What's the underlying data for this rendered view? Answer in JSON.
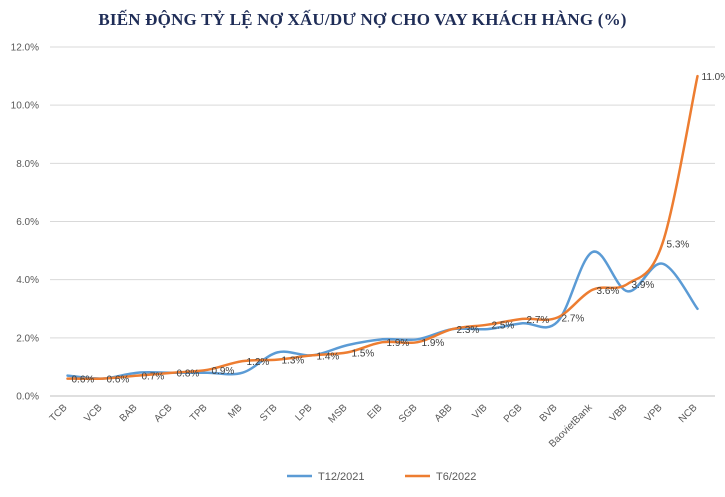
{
  "chart_data": {
    "type": "line",
    "title": "BIẾN ĐỘNG TỶ LỆ NỢ XẤU/DƯ NỢ CHO VAY KHÁCH HÀNG (%)",
    "xlabel": "",
    "ylabel": "",
    "categories": [
      "TCB",
      "VCB",
      "BAB",
      "ACB",
      "TPB",
      "MB",
      "STB",
      "LPB",
      "MSB",
      "EIB",
      "SGB",
      "ABB",
      "VIB",
      "PGB",
      "BVB",
      "BaovietBank",
      "VBB",
      "VPB",
      "NCB"
    ],
    "ylim": [
      0,
      12
    ],
    "yticks": [
      "0.0%",
      "2.0%",
      "4.0%",
      "6.0%",
      "8.0%",
      "10.0%",
      "12.0%"
    ],
    "grid": true,
    "legend_position": "bottom",
    "series": [
      {
        "name": "T12/2021",
        "color": "#5b9bd5",
        "values": [
          0.7,
          0.6,
          0.8,
          0.8,
          0.8,
          0.8,
          1.5,
          1.4,
          1.75,
          1.95,
          1.95,
          2.3,
          2.3,
          2.5,
          2.55,
          4.95,
          3.6,
          4.55,
          3.0
        ]
      },
      {
        "name": "T6/2022",
        "color": "#ed7d31",
        "values": [
          0.6,
          0.6,
          0.7,
          0.8,
          0.9,
          1.2,
          1.25,
          1.4,
          1.5,
          1.85,
          1.85,
          2.3,
          2.45,
          2.65,
          2.7,
          3.65,
          3.85,
          5.25,
          11.0
        ],
        "data_labels": [
          "0.6%",
          "0.6%",
          "0.7%",
          "0.8%",
          "0.9%",
          "1.2%",
          "1.3%",
          "1.4%",
          "1.5%",
          "1.9%",
          "1.9%",
          "2.3%",
          "2.5%",
          "2.7%",
          "2.7%",
          "3.6%",
          "3.9%",
          "5.3%",
          "11.0%"
        ]
      }
    ]
  }
}
